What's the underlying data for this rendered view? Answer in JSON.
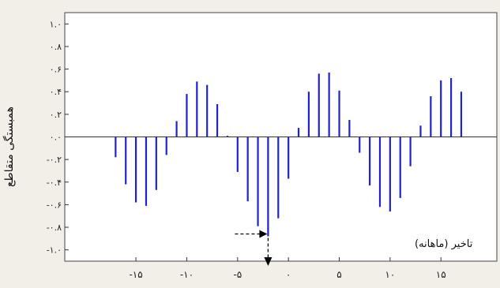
{
  "chart_data": {
    "type": "bar",
    "title": "",
    "xlabel": "تاخیر (ماهانه)",
    "ylabel": "همبستگی متقاطع",
    "xlim": [
      -22,
      20.5
    ],
    "ylim": [
      -1.1,
      1.1
    ],
    "x_ticks": [
      -15,
      -10,
      -5,
      0,
      5,
      10,
      15
    ],
    "x_tick_labels": [
      "-۱۵",
      "-۱۰",
      "-۵",
      "۰",
      "۵",
      "۱۰",
      "۱۵"
    ],
    "y_ticks": [
      1.0,
      0.8,
      0.6,
      0.4,
      0.2,
      0.0,
      -0.2,
      -0.4,
      -0.6,
      -0.8,
      -1.0
    ],
    "y_tick_labels": [
      "۱.۰",
      "۰.۸",
      "۰.۶",
      "۰.۴",
      "۰.۲",
      "۰.۰",
      "-۰.۲",
      "-۰.۴",
      "-۰.۶",
      "-۰.۸",
      "-۱.۰"
    ],
    "series": [
      {
        "color": "#2222cc",
        "x": [
          -17,
          -16,
          -15,
          -14,
          -13,
          -12,
          -11,
          -10,
          -9,
          -8,
          -7,
          -6,
          -5,
          -4,
          -3,
          -2,
          -1,
          0,
          1,
          2,
          3,
          4,
          5,
          6,
          7,
          8,
          9,
          10,
          11,
          12,
          13,
          14,
          15,
          16,
          17
        ],
        "values": [
          -0.18,
          -0.42,
          -0.58,
          -0.61,
          -0.47,
          -0.16,
          0.14,
          0.38,
          0.49,
          0.46,
          0.29,
          0.01,
          -0.31,
          -0.57,
          -0.79,
          -0.88,
          -0.72,
          -0.37,
          0.08,
          0.4,
          0.56,
          0.57,
          0.41,
          0.15,
          -0.14,
          -0.43,
          -0.62,
          -0.66,
          -0.54,
          -0.26,
          0.1,
          0.36,
          0.5,
          0.52,
          0.4
        ]
      }
    ],
    "annotation_color": "#000000",
    "grid": false,
    "zero_line": true,
    "legend": "none"
  }
}
